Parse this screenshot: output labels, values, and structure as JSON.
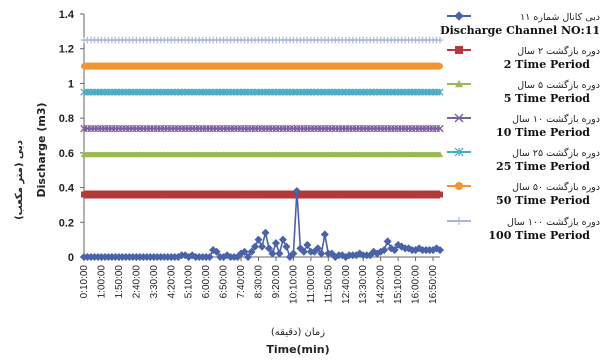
{
  "chart_data": {
    "type": "line",
    "ylim": [
      0,
      1.4
    ],
    "yticks": [
      0,
      0.2,
      0.4,
      0.6,
      0.8,
      1,
      1.2,
      1.4
    ],
    "ylabel_fa": "دبی (متر مکعب)",
    "ylabel_en": "Discharge (m3)",
    "xlabel_fa": "زمان (دقیقه)",
    "xlabel_en": "Time(min)",
    "x_tick_labels": [
      "0:10:00",
      "1:00:00",
      "1:50:00",
      "2:40:00",
      "3:30:00",
      "4:20:00",
      "5:10:00",
      "6:00:00",
      "6:50:00",
      "7:40:00",
      "8:30:00",
      "9:20:00",
      "10:10:00",
      "11:00:00",
      "11:50:00",
      "12:40:00",
      "13:30:00",
      "14:20:00",
      "15:10:00",
      "16:00:00",
      "16:50:00"
    ],
    "x_minutes_start": 10,
    "x_minutes_end": 1030,
    "series": [
      {
        "name_fa": "دبی کانال شماره ۱۱",
        "name_en": "Discharge Channel NO:11",
        "color": "#4a63a8",
        "marker": "diamond",
        "minutes": [
          10,
          20,
          30,
          40,
          50,
          60,
          70,
          80,
          90,
          100,
          110,
          120,
          130,
          140,
          150,
          160,
          170,
          180,
          190,
          200,
          210,
          220,
          230,
          240,
          250,
          260,
          270,
          280,
          290,
          300,
          310,
          320,
          330,
          340,
          350,
          360,
          370,
          380,
          390,
          400,
          410,
          420,
          430,
          440,
          450,
          460,
          470,
          480,
          490,
          500,
          510,
          520,
          530,
          540,
          550,
          560,
          570,
          580,
          590,
          600,
          610,
          620,
          630,
          640,
          650,
          660,
          670,
          680,
          690,
          700,
          710,
          720,
          730,
          740,
          750,
          760,
          770,
          780,
          790,
          800,
          810,
          820,
          830,
          840,
          850,
          860,
          870,
          880,
          890,
          900,
          910,
          920,
          930,
          940,
          950,
          960,
          970,
          980,
          990,
          1000,
          1010,
          1020,
          1030
        ],
        "values": [
          0,
          0,
          0,
          0,
          0,
          0,
          0,
          0,
          0,
          0,
          0,
          0,
          0,
          0,
          0,
          0,
          0,
          0,
          0,
          0,
          0,
          0,
          0,
          0,
          0,
          0,
          0,
          0,
          0.01,
          0.01,
          0,
          0.01,
          0,
          0,
          0,
          0,
          0,
          0.04,
          0.03,
          0,
          0,
          0.01,
          0,
          0,
          0,
          0.02,
          0.03,
          0,
          0.03,
          0.06,
          0.1,
          0.06,
          0.14,
          0.05,
          0.02,
          0.08,
          0.02,
          0.1,
          0.06,
          0,
          0.02,
          0.38,
          0.05,
          0.03,
          0.07,
          0.03,
          0.03,
          0.05,
          0.02,
          0.13,
          0.02,
          0.02,
          0,
          0.01,
          0.01,
          0,
          0.01,
          0.01,
          0.01,
          0.02,
          0.01,
          0.01,
          0.01,
          0.03,
          0.02,
          0.03,
          0.04,
          0.09,
          0.05,
          0.04,
          0.07,
          0.06,
          0.05,
          0.05,
          0.04,
          0.04,
          0.05,
          0.04,
          0.04,
          0.04,
          0.04,
          0.05,
          0.04
        ]
      },
      {
        "name_fa": "دوره بازگشت ۲ سال",
        "name_en": "2 Time Period",
        "color": "#b5383a",
        "marker": "square",
        "constant": 0.36
      },
      {
        "name_fa": "دوره بازگشت ۵ سال",
        "name_en": "5 Time Period",
        "color": "#98b954",
        "marker": "triangle",
        "constant": 0.59
      },
      {
        "name_fa": "دوره بازگشت ۱۰ سال",
        "name_en": "10 Time Period",
        "color": "#7d5fa0",
        "marker": "x",
        "constant": 0.74
      },
      {
        "name_fa": "دوره بازگشت ۲۵ سال",
        "name_en": "25 Time Period",
        "color": "#4aa9c4",
        "marker": "asterisk",
        "constant": 0.95
      },
      {
        "name_fa": "دوره بازگشت ۵۰ سال",
        "name_en": "50 Time Period",
        "color": "#f39432",
        "marker": "circle",
        "constant": 1.1
      },
      {
        "name_fa": "دوره بازگشت ۱۰۰ سال",
        "name_en": "100 Time Period",
        "color": "#a7b6d8",
        "marker": "plus",
        "constant": 1.25
      }
    ],
    "legend_position": "right",
    "grid": false
  }
}
